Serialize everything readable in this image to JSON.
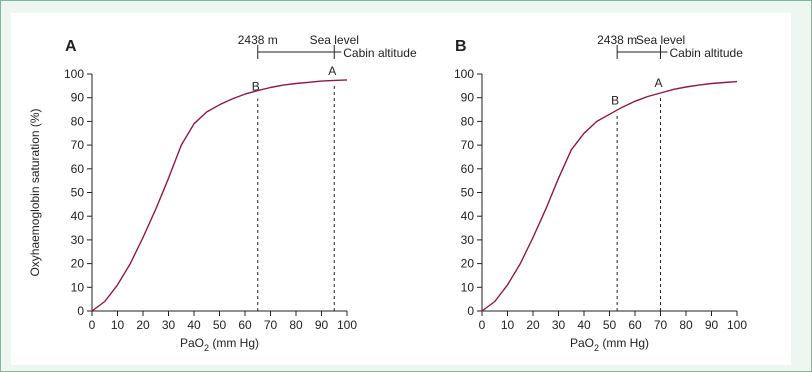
{
  "chart_data": [
    {
      "type": "line",
      "panel_label": "A",
      "ylabel": "Oxyhaemoglobin saturation (%)",
      "xlabel_main": "PaO",
      "xlabel_sub": "2",
      "xlabel_tail": " (mm Hg)",
      "xlim": [
        0,
        100
      ],
      "ylim": [
        0,
        100
      ],
      "x_ticks": [
        0,
        10,
        20,
        30,
        40,
        50,
        60,
        70,
        80,
        90,
        100
      ],
      "y_ticks": [
        0,
        10,
        20,
        30,
        40,
        50,
        60,
        70,
        80,
        90,
        100
      ],
      "series": [
        {
          "x": [
            0,
            5,
            10,
            15,
            20,
            25,
            30,
            35,
            40,
            45,
            50,
            55,
            60,
            65,
            70,
            75,
            80,
            85,
            90,
            95,
            100
          ],
          "y": [
            0,
            4,
            11,
            20,
            31,
            43,
            56,
            70,
            79,
            84,
            87,
            89.5,
            91.5,
            93,
            94.3,
            95.3,
            96,
            96.5,
            97,
            97.3,
            97.5
          ],
          "color": "#8b1a4a"
        }
      ],
      "reference_lines": [
        {
          "label": "B",
          "x": 65,
          "y": 90.5
        },
        {
          "label": "A",
          "x": 95,
          "y": 97
        }
      ],
      "altitude_scale": {
        "left_label": "2438 m",
        "right_label": "Sea level",
        "caption": "Cabin altitude",
        "from_x": 65,
        "to_x": 95
      }
    },
    {
      "type": "line",
      "panel_label": "B",
      "ylabel": "",
      "xlabel_main": "PaO",
      "xlabel_sub": "2",
      "xlabel_tail": " (mm Hg)",
      "xlim": [
        0,
        100
      ],
      "ylim": [
        0,
        100
      ],
      "x_ticks": [
        0,
        10,
        20,
        30,
        40,
        50,
        60,
        70,
        80,
        90,
        100
      ],
      "y_ticks": [
        0,
        10,
        20,
        30,
        40,
        50,
        60,
        70,
        80,
        90,
        100
      ],
      "series": [
        {
          "x": [
            0,
            5,
            10,
            15,
            20,
            25,
            30,
            35,
            40,
            45,
            50,
            55,
            60,
            65,
            70,
            75,
            80,
            85,
            90,
            95,
            100
          ],
          "y": [
            0,
            4,
            11,
            20,
            31,
            43,
            56,
            68,
            75,
            80,
            83,
            86,
            88.5,
            90.5,
            92,
            93.5,
            94.5,
            95.3,
            96,
            96.4,
            96.8
          ],
          "color": "#8b1a4a"
        }
      ],
      "reference_lines": [
        {
          "label": "B",
          "x": 53,
          "y": 84.5
        },
        {
          "label": "A",
          "x": 70,
          "y": 92
        }
      ],
      "altitude_scale": {
        "left_label": "2438 m",
        "right_label": "Sea level",
        "caption": "Cabin altitude",
        "from_x": 53,
        "to_x": 70
      }
    }
  ]
}
